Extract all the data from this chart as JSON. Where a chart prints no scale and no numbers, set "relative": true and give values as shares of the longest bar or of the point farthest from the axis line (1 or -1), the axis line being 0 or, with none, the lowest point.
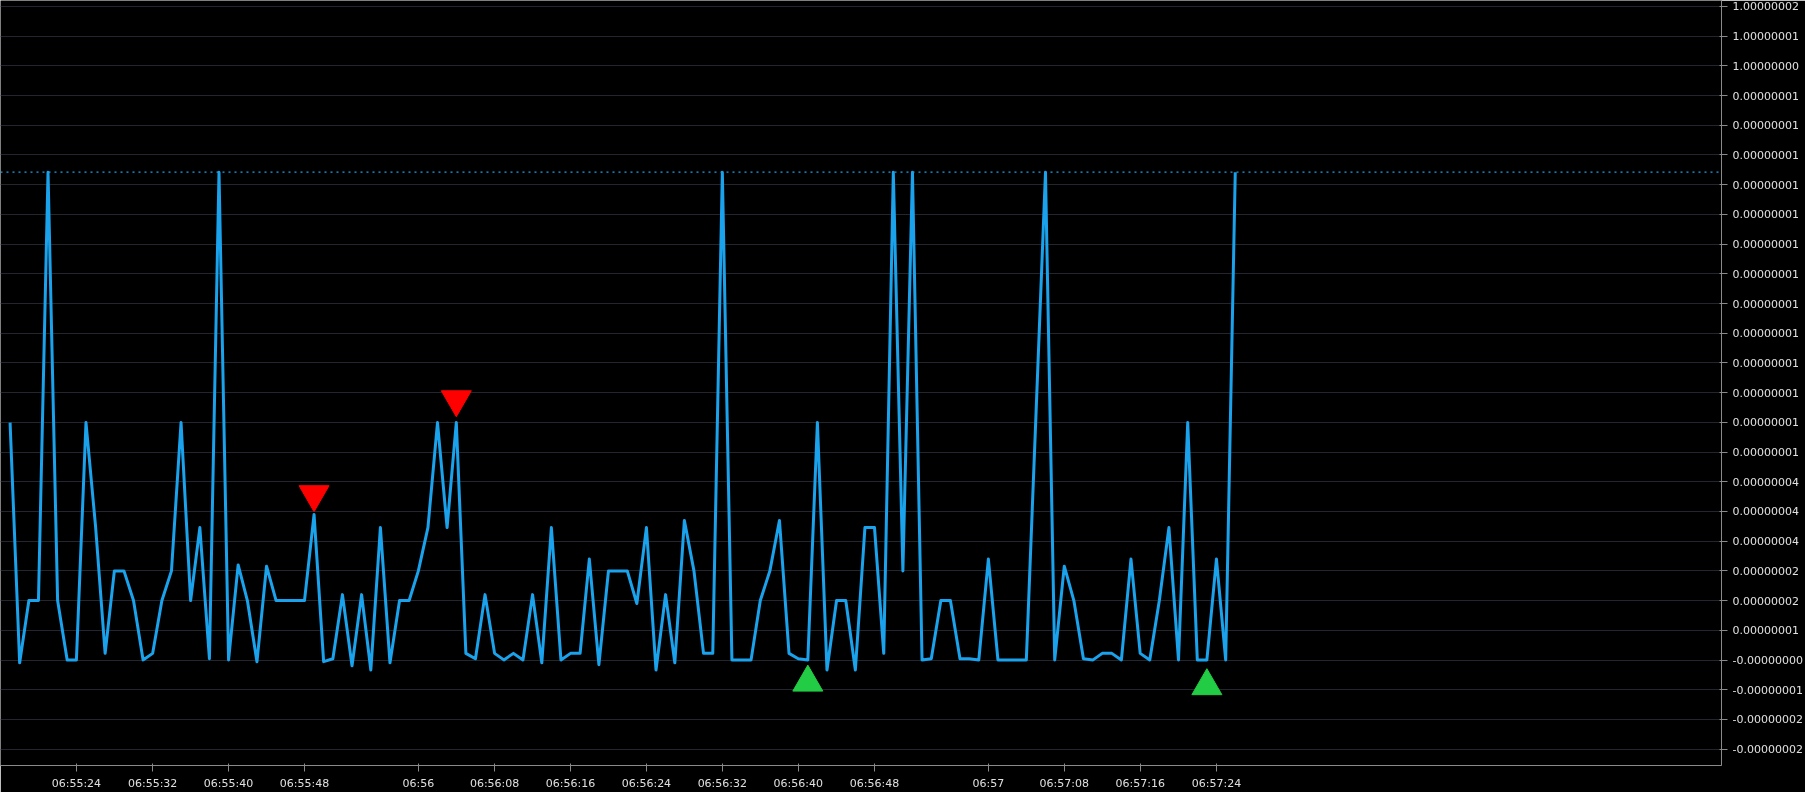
{
  "chart_data": {
    "type": "line",
    "x": [
      6.92139,
      6.92167,
      6.92194,
      6.92222,
      6.9225,
      6.92278,
      6.92306,
      6.92333,
      6.92361,
      6.92389,
      6.92417,
      6.92444,
      6.92472,
      6.925,
      6.92528,
      6.92556,
      6.92583,
      6.92611,
      6.92639,
      6.92667,
      6.92694,
      6.92722,
      6.9275,
      6.92778,
      6.92806,
      6.92833,
      6.92861,
      6.92889,
      6.92917,
      6.92944,
      6.92972,
      6.93,
      6.93028,
      6.93056,
      6.93083,
      6.93111,
      6.93139,
      6.93167,
      6.93194,
      6.93222,
      6.9325,
      6.93278,
      6.93306,
      6.93333,
      6.93361,
      6.93389,
      6.93417,
      6.93444,
      6.93472,
      6.935,
      6.93528,
      6.93556,
      6.93583,
      6.93611,
      6.93639,
      6.93667,
      6.93694,
      6.93722,
      6.9375,
      6.93778,
      6.93806,
      6.93833,
      6.93861,
      6.93889,
      6.93917,
      6.93944,
      6.93972,
      6.94,
      6.94028,
      6.94056,
      6.94083,
      6.94111,
      6.94139,
      6.94167,
      6.94194,
      6.94222,
      6.9425,
      6.94278,
      6.94306,
      6.94333,
      6.94361,
      6.94389,
      6.94417,
      6.94444,
      6.94472,
      6.945,
      6.94528,
      6.94556,
      6.94583,
      6.94611,
      6.94639,
      6.94667,
      6.94694,
      6.94722,
      6.9475,
      6.94778,
      6.94806,
      6.94833,
      6.94861,
      6.94889,
      6.94917,
      6.94944,
      6.94972,
      6.95,
      6.95028,
      6.95056,
      6.95083,
      6.95111,
      6.95139,
      6.95167,
      6.95194,
      6.95222,
      6.9525,
      6.95278,
      6.95306,
      6.95333,
      6.95361,
      6.95389,
      6.95417,
      6.95444,
      6.95472,
      6.955,
      6.95528,
      6.95556,
      6.95583,
      6.95611,
      6.95639,
      6.95667,
      6.95694,
      6.95722
    ],
    "series": [
      {
        "color": "#1aa3ec",
        "values": [
          0.578,
          0.173,
          0.278,
          0.278,
          1,
          0.278,
          0.178,
          0.178,
          0.578,
          0.403,
          0.189,
          0.328,
          0.328,
          0.278,
          0.178,
          0.189,
          0.278,
          0.328,
          0.578,
          0.278,
          0.401,
          0.18,
          1,
          0.178,
          0.338,
          0.278,
          0.175,
          0.336,
          0.278,
          0.278,
          0.278,
          0.278,
          0.423,
          0.175,
          0.18,
          0.288,
          0.168,
          0.288,
          0.161,
          0.401,
          0.173,
          0.278,
          0.278,
          0.328,
          0.401,
          0.578,
          0.401,
          0.578,
          0.189,
          0.18,
          0.288,
          0.189,
          0.178,
          0.189,
          0.178,
          0.288,
          0.173,
          0.401,
          0.178,
          0.189,
          0.189,
          0.348,
          0.17,
          0.328,
          0.328,
          0.328,
          0.273,
          0.401,
          0.161,
          0.288,
          0.173,
          0.413,
          0.328,
          0.189,
          0.189,
          1,
          0.178,
          0.178,
          0.178,
          0.278,
          0.328,
          0.413,
          0.189,
          0.18,
          0.178,
          0.578,
          0.161,
          0.278,
          0.278,
          0.161,
          0.401,
          0.401,
          0.189,
          1,
          0.328,
          1,
          0.178,
          0.18,
          0.278,
          0.278,
          0.18,
          0.18,
          0.178,
          0.348,
          0.178,
          0.178,
          0.178,
          0.178,
          0.588,
          1,
          0.178,
          0.336,
          0.278,
          0.18,
          0.178,
          0.189,
          0.189,
          0.178,
          0.348,
          0.189,
          0.178,
          0.278,
          0.401,
          0.178,
          0.578,
          0.178,
          0.178,
          0.348,
          0.178,
          1
        ]
      },
      {
        "type": "scatter",
        "marker": "triangle",
        "color": "#ff0000",
        "x": [
          6.93028,
          6.93444
        ],
        "values": [
          0.457,
          0.617
        ]
      },
      {
        "type": "scatter",
        "marker": "triangle",
        "color": "#22cc44",
        "x": [
          6.94472,
          6.95639
        ],
        "values": [
          0.14,
          0.134
        ]
      }
    ],
    "relative": true,
    "annotations": [
      "1.00000002",
      "1.00000001",
      "1.00000000",
      "0.00000001",
      "0.00000001",
      "0.00000001",
      "0.00000001",
      "0.00000001",
      "0.00000001",
      "0.00000001",
      "0.00000001",
      "0.00000001",
      "0.00000001",
      "0.00000001",
      "0.00000001",
      "0.00000001",
      "0.00000004",
      "0.00000004",
      "0.00000004",
      "0.00000002",
      "0.00000002",
      "0.00000001",
      "-0.00000000",
      "-0.00000001",
      "-0.00000002",
      "-0.00000002"
    ],
    "xlim": [
      6.92111,
      6.97144
    ],
    "xticks": [
      {
        "value": 6.92333,
        "label": "06:55:24"
      },
      {
        "value": 6.92556,
        "label": "06:55:32"
      },
      {
        "value": 6.92778,
        "label": "06:55:40"
      },
      {
        "value": 6.93,
        "label": "06:55:48"
      },
      {
        "value": 6.93333,
        "label": "06:56"
      },
      {
        "value": 6.93556,
        "label": "06:56:08"
      },
      {
        "value": 6.93778,
        "label": "06:56:16"
      },
      {
        "value": 6.94,
        "label": "06:56:24"
      },
      {
        "value": 6.94222,
        "label": "06:56:32"
      },
      {
        "value": 6.94444,
        "label": "06:56:40"
      },
      {
        "value": 6.94667,
        "label": "06:56:48"
      },
      {
        "value": 6.95,
        "label": "06:57"
      },
      {
        "value": 6.95222,
        "label": "06:57:08"
      },
      {
        "value": 6.95444,
        "label": "06:57:16"
      },
      {
        "value": 6.95667,
        "label": "06:57:24"
      }
    ],
    "ref_lines": [
      {
        "axis": "y",
        "value": 1,
        "color": "#1aa3ec",
        "line_style": "dotted"
      }
    ],
    "grid": "y",
    "line_style": "solid",
    "marker": "none"
  }
}
